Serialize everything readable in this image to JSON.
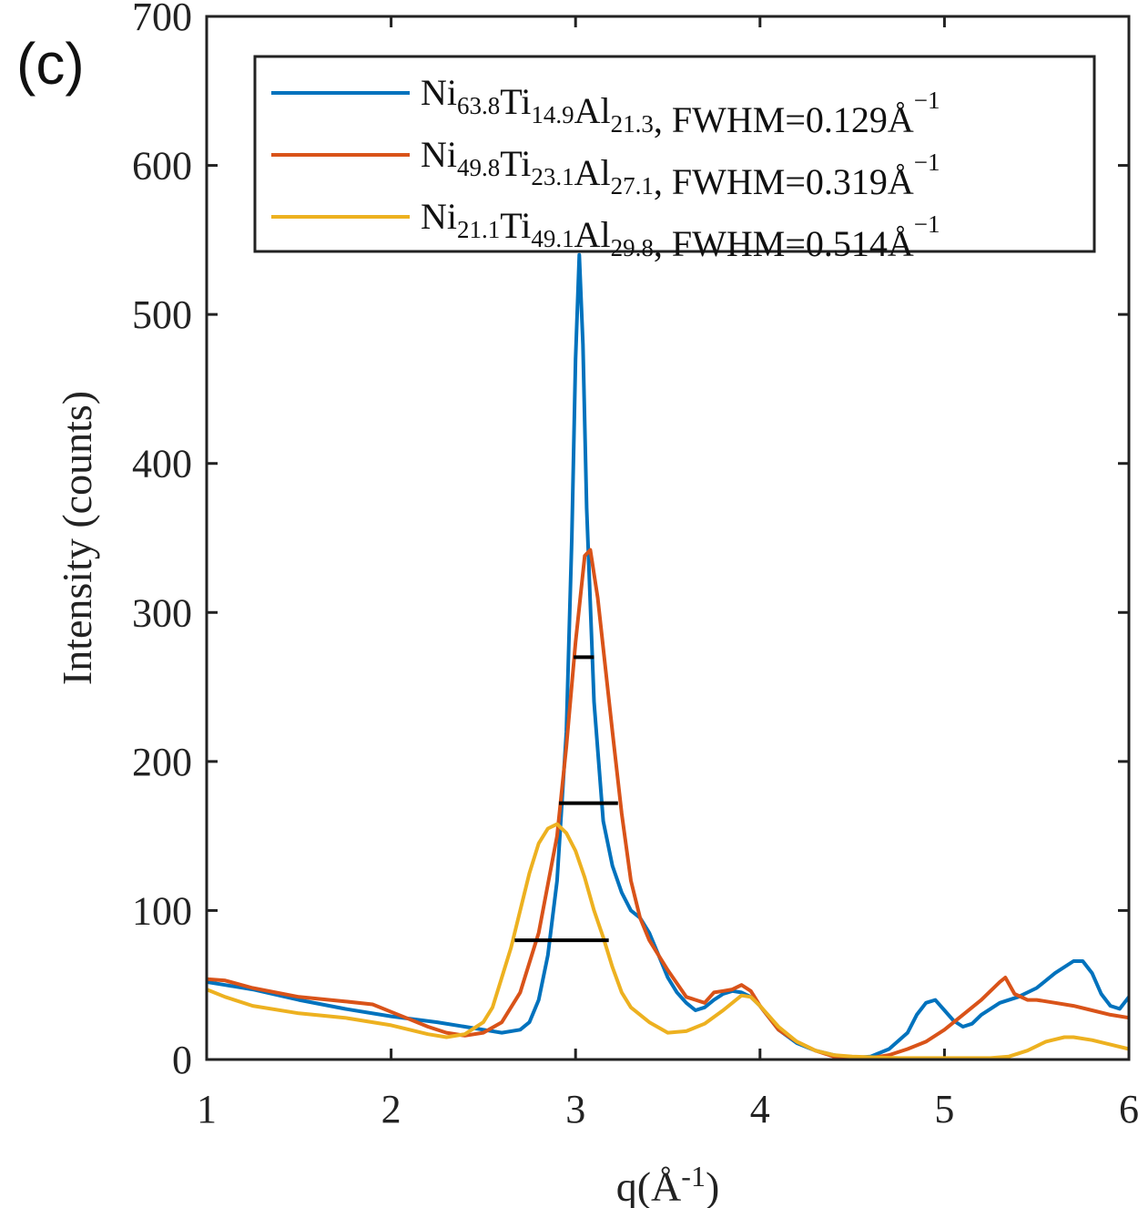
{
  "panel_label": "(c)",
  "chart_data": {
    "type": "line",
    "title": "",
    "xlabel": {
      "base": "q(Å",
      "sup": "-1",
      "close": ")"
    },
    "ylabel": "Intensity (counts)",
    "xlim": [
      1,
      6
    ],
    "ylim": [
      0,
      700
    ],
    "xticks": [
      "1",
      "2",
      "3",
      "4",
      "5",
      "6"
    ],
    "yticks": [
      "0",
      "100",
      "200",
      "300",
      "400",
      "500",
      "600",
      "700"
    ],
    "legend_position": "top",
    "series": [
      {
        "legend": {
          "parts": [
            {
              "t": "Ni",
              "s": "63.8"
            },
            {
              "t": "Ti",
              "s": "14.9"
            },
            {
              "t": "Al",
              "s": "21.3"
            },
            {
              "t": ", FWHM=0.129Å"
            }
          ],
          "sup": "−1"
        },
        "color": "#0072BD",
        "points": [
          [
            1.0,
            52
          ],
          [
            1.1,
            50
          ],
          [
            1.25,
            47
          ],
          [
            1.5,
            40
          ],
          [
            1.75,
            34
          ],
          [
            2.0,
            29
          ],
          [
            2.25,
            25
          ],
          [
            2.4,
            22
          ],
          [
            2.5,
            20
          ],
          [
            2.6,
            18
          ],
          [
            2.7,
            20
          ],
          [
            2.75,
            25
          ],
          [
            2.8,
            40
          ],
          [
            2.85,
            70
          ],
          [
            2.9,
            120
          ],
          [
            2.95,
            220
          ],
          [
            2.98,
            350
          ],
          [
            3.0,
            470
          ],
          [
            3.02,
            540
          ],
          [
            3.04,
            480
          ],
          [
            3.06,
            370
          ],
          [
            3.1,
            240
          ],
          [
            3.15,
            160
          ],
          [
            3.2,
            130
          ],
          [
            3.25,
            112
          ],
          [
            3.3,
            100
          ],
          [
            3.35,
            95
          ],
          [
            3.4,
            85
          ],
          [
            3.45,
            70
          ],
          [
            3.5,
            55
          ],
          [
            3.55,
            45
          ],
          [
            3.6,
            38
          ],
          [
            3.65,
            33
          ],
          [
            3.7,
            35
          ],
          [
            3.75,
            40
          ],
          [
            3.8,
            44
          ],
          [
            3.85,
            46
          ],
          [
            3.9,
            45
          ],
          [
            3.95,
            42
          ],
          [
            4.0,
            36
          ],
          [
            4.05,
            28
          ],
          [
            4.1,
            20
          ],
          [
            4.2,
            11
          ],
          [
            4.3,
            6
          ],
          [
            4.4,
            3
          ],
          [
            4.5,
            1
          ],
          [
            4.6,
            2
          ],
          [
            4.7,
            7
          ],
          [
            4.8,
            18
          ],
          [
            4.85,
            30
          ],
          [
            4.9,
            38
          ],
          [
            4.95,
            40
          ],
          [
            5.0,
            33
          ],
          [
            5.05,
            26
          ],
          [
            5.1,
            22
          ],
          [
            5.15,
            24
          ],
          [
            5.2,
            30
          ],
          [
            5.3,
            38
          ],
          [
            5.4,
            42
          ],
          [
            5.5,
            48
          ],
          [
            5.6,
            58
          ],
          [
            5.7,
            66
          ],
          [
            5.75,
            66
          ],
          [
            5.8,
            58
          ],
          [
            5.85,
            44
          ],
          [
            5.9,
            36
          ],
          [
            5.95,
            34
          ],
          [
            6.0,
            42
          ]
        ]
      },
      {
        "legend": {
          "parts": [
            {
              "t": "Ni",
              "s": "49.8"
            },
            {
              "t": "Ti",
              "s": "23.1"
            },
            {
              "t": "Al",
              "s": "27.1"
            },
            {
              "t": ", FWHM=0.319Å"
            }
          ],
          "sup": "−1"
        },
        "color": "#D95319",
        "points": [
          [
            1.0,
            54
          ],
          [
            1.1,
            53
          ],
          [
            1.25,
            48
          ],
          [
            1.5,
            42
          ],
          [
            1.75,
            39
          ],
          [
            1.9,
            37
          ],
          [
            2.0,
            32
          ],
          [
            2.1,
            27
          ],
          [
            2.2,
            22
          ],
          [
            2.3,
            18
          ],
          [
            2.4,
            16
          ],
          [
            2.5,
            18
          ],
          [
            2.6,
            25
          ],
          [
            2.7,
            45
          ],
          [
            2.8,
            85
          ],
          [
            2.9,
            150
          ],
          [
            2.95,
            210
          ],
          [
            3.0,
            280
          ],
          [
            3.05,
            338
          ],
          [
            3.08,
            342
          ],
          [
            3.12,
            310
          ],
          [
            3.2,
            220
          ],
          [
            3.25,
            165
          ],
          [
            3.3,
            120
          ],
          [
            3.35,
            95
          ],
          [
            3.4,
            80
          ],
          [
            3.5,
            60
          ],
          [
            3.6,
            42
          ],
          [
            3.7,
            38
          ],
          [
            3.75,
            45
          ],
          [
            3.8,
            46
          ],
          [
            3.85,
            47
          ],
          [
            3.9,
            50
          ],
          [
            3.95,
            46
          ],
          [
            4.0,
            36
          ],
          [
            4.05,
            28
          ],
          [
            4.1,
            20
          ],
          [
            4.2,
            12
          ],
          [
            4.3,
            6
          ],
          [
            4.4,
            2
          ],
          [
            4.5,
            1
          ],
          [
            4.6,
            1
          ],
          [
            4.7,
            3
          ],
          [
            4.8,
            7
          ],
          [
            4.9,
            12
          ],
          [
            5.0,
            20
          ],
          [
            5.1,
            30
          ],
          [
            5.2,
            40
          ],
          [
            5.3,
            52
          ],
          [
            5.33,
            55
          ],
          [
            5.38,
            44
          ],
          [
            5.45,
            40
          ],
          [
            5.5,
            40
          ],
          [
            5.6,
            38
          ],
          [
            5.7,
            36
          ],
          [
            5.8,
            33
          ],
          [
            5.9,
            30
          ],
          [
            6.0,
            28
          ]
        ]
      },
      {
        "legend": {
          "parts": [
            {
              "t": "Ni",
              "s": "21.1"
            },
            {
              "t": "Ti",
              "s": "49.1"
            },
            {
              "t": "Al",
              "s": "29.8"
            },
            {
              "t": ", FWHM=0.514Å"
            }
          ],
          "sup": "−1"
        },
        "color": "#EDB120",
        "points": [
          [
            1.0,
            47
          ],
          [
            1.1,
            42
          ],
          [
            1.25,
            36
          ],
          [
            1.5,
            31
          ],
          [
            1.75,
            28
          ],
          [
            2.0,
            23
          ],
          [
            2.1,
            20
          ],
          [
            2.2,
            17
          ],
          [
            2.3,
            15
          ],
          [
            2.4,
            17
          ],
          [
            2.5,
            25
          ],
          [
            2.55,
            35
          ],
          [
            2.6,
            55
          ],
          [
            2.65,
            75
          ],
          [
            2.7,
            100
          ],
          [
            2.75,
            125
          ],
          [
            2.8,
            145
          ],
          [
            2.85,
            155
          ],
          [
            2.9,
            158
          ],
          [
            2.95,
            152
          ],
          [
            3.0,
            140
          ],
          [
            3.05,
            122
          ],
          [
            3.1,
            100
          ],
          [
            3.15,
            82
          ],
          [
            3.2,
            62
          ],
          [
            3.25,
            45
          ],
          [
            3.3,
            35
          ],
          [
            3.4,
            25
          ],
          [
            3.5,
            18
          ],
          [
            3.6,
            19
          ],
          [
            3.7,
            24
          ],
          [
            3.8,
            33
          ],
          [
            3.9,
            43
          ],
          [
            3.95,
            42
          ],
          [
            4.0,
            36
          ],
          [
            4.1,
            22
          ],
          [
            4.2,
            12
          ],
          [
            4.3,
            6
          ],
          [
            4.4,
            3
          ],
          [
            4.5,
            2
          ],
          [
            4.75,
            1
          ],
          [
            5.0,
            1
          ],
          [
            5.25,
            1
          ],
          [
            5.35,
            2
          ],
          [
            5.45,
            6
          ],
          [
            5.55,
            12
          ],
          [
            5.65,
            15
          ],
          [
            5.7,
            15
          ],
          [
            5.8,
            13
          ],
          [
            5.9,
            10
          ],
          [
            6.0,
            7
          ]
        ]
      }
    ],
    "fwhm_markers": [
      {
        "x1": 2.99,
        "x2": 3.1,
        "y": 270
      },
      {
        "x1": 2.91,
        "x2": 3.23,
        "y": 172
      },
      {
        "x1": 2.67,
        "x2": 3.18,
        "y": 80
      }
    ]
  }
}
